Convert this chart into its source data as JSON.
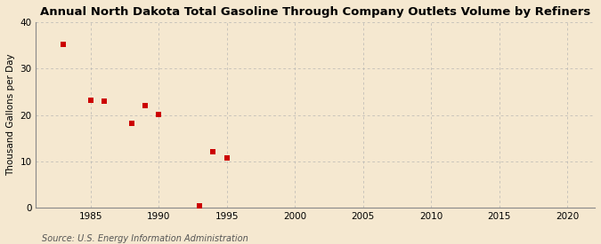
{
  "title": "Annual North Dakota Total Gasoline Through Company Outlets Volume by Refiners",
  "ylabel": "Thousand Gallons per Day",
  "source": "Source: U.S. Energy Information Administration",
  "x_values": [
    1983,
    1985,
    1986,
    1988,
    1989,
    1990,
    1993,
    1994,
    1995
  ],
  "y_values": [
    35.2,
    23.1,
    23.0,
    18.2,
    22.1,
    20.2,
    0.3,
    12.0,
    10.8
  ],
  "marker_color": "#cc0000",
  "marker_size": 16,
  "background_color": "#f5e8d0",
  "plot_bg_color": "#f5e8d0",
  "grid_color": "#b0b0b0",
  "xlim": [
    1981,
    2022
  ],
  "ylim": [
    0,
    40
  ],
  "xticks": [
    1985,
    1990,
    1995,
    2000,
    2005,
    2010,
    2015,
    2020
  ],
  "yticks": [
    0,
    10,
    20,
    30,
    40
  ],
  "title_fontsize": 9.5,
  "label_fontsize": 7.5,
  "tick_fontsize": 7.5,
  "source_fontsize": 7
}
